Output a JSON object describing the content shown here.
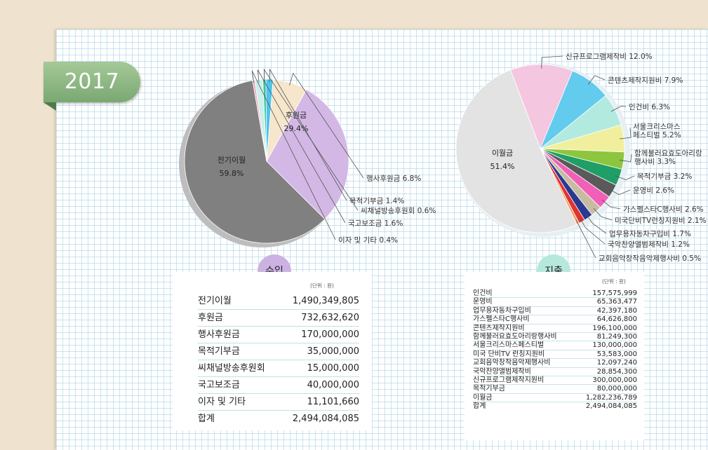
{
  "year": "2017",
  "colors": {
    "paper": "#efe3cf",
    "ribbon": "#8cb683",
    "income_badge": "#ccb2e2",
    "expense_badge": "#b6e8dc"
  },
  "chart_data": [
    {
      "type": "pie",
      "title": "수입",
      "slices": [
        {
          "label": "전기이월",
          "value": 59.8,
          "display": "59.8%",
          "color": "#808080"
        },
        {
          "label": "후원금",
          "value": 29.4,
          "display": "29.4%",
          "color": "#d3b8e6"
        },
        {
          "label": "행사후원금",
          "value": 6.8,
          "display": "6.8%",
          "color": "#f5e6cc"
        },
        {
          "label": "목적기부금",
          "value": 1.4,
          "display": "1.4%",
          "color": "#4ec3ec"
        },
        {
          "label": "씨채널방송후원회",
          "value": 0.6,
          "display": "0.6%",
          "color": "#38c29a"
        },
        {
          "label": "국고보조금",
          "value": 1.6,
          "display": "1.6%",
          "color": "#c9f0ea"
        },
        {
          "label": "이자 및 기타",
          "value": 0.4,
          "display": "0.4%",
          "color": "#f2a3b9"
        }
      ]
    },
    {
      "type": "pie",
      "title": "지출",
      "slices": [
        {
          "label": "신규프로그램제작비",
          "value": 12.0,
          "display": "12.0%",
          "color": "#f5c6e0"
        },
        {
          "label": "콘텐츠제작지원비",
          "value": 7.9,
          "display": "7.9%",
          "color": "#62cbee"
        },
        {
          "label": "인건비",
          "value": 6.3,
          "display": "6.3%",
          "color": "#b3eadf"
        },
        {
          "label": "서울크리스마스 페스티벌",
          "value": 5.2,
          "display": "5.2%",
          "color": "#f1ef9d"
        },
        {
          "label": "함께불러요효도아리랑 행사비",
          "value": 3.3,
          "display": "3.3%",
          "color": "#8cc63e"
        },
        {
          "label": "목적기부금",
          "value": 3.2,
          "display": "3.2%",
          "color": "#1f9e66"
        },
        {
          "label": "운영비",
          "value": 2.6,
          "display": "2.6%",
          "color": "#5a5a5a"
        },
        {
          "label": "가스펠스타C행사비",
          "value": 2.6,
          "display": "2.6%",
          "color": "#f15fb8"
        },
        {
          "label": "미국단비TV런칭지원비",
          "value": 2.1,
          "display": "2.1%",
          "color": "#c7bca2"
        },
        {
          "label": "업무용자동차구입비",
          "value": 1.7,
          "display": "1.7%",
          "color": "#2a3990"
        },
        {
          "label": "국악찬양앨범제작비",
          "value": 1.2,
          "display": "1.2%",
          "color": "#e0342f"
        },
        {
          "label": "교회음악창작음악제행사비",
          "value": 0.5,
          "display": "0.5%",
          "color": "#f49a5c"
        },
        {
          "label": "이월금",
          "value": 51.4,
          "display": "51.4%",
          "color": "#e3e3e3"
        }
      ]
    }
  ],
  "income": {
    "title": "수입",
    "unit": "(단위 : 원)",
    "rows": [
      {
        "label": "전기이월",
        "amount": "1,490,349,805"
      },
      {
        "label": "후원금",
        "amount": "732,632,620"
      },
      {
        "label": "행사후원금",
        "amount": "170,000,000"
      },
      {
        "label": "목적기부금",
        "amount": "35,000,000"
      },
      {
        "label": "씨채널방송후원회",
        "amount": "15,000,000"
      },
      {
        "label": "국고보조금",
        "amount": "40,000,000"
      },
      {
        "label": "이자 및 기타",
        "amount": "11,101,660"
      },
      {
        "label": "합계",
        "amount": "2,494,084,085"
      }
    ]
  },
  "expense": {
    "title": "지출",
    "unit": "(단위 : 원)",
    "rows": [
      {
        "label": "인건비",
        "amount": "157,575,999"
      },
      {
        "label": "운영비",
        "amount": "65,363,477"
      },
      {
        "label": "업무용자동차구입비",
        "amount": "42,397,180"
      },
      {
        "label": "가스펠스타C행사비",
        "amount": "64,626,800"
      },
      {
        "label": "콘텐츠제작지원비",
        "amount": "196,100,000"
      },
      {
        "label": "함께불러요효도아리랑행사비",
        "amount": "81,249,300"
      },
      {
        "label": "서울크리스마스페스티벌",
        "amount": "130,000,000"
      },
      {
        "label": "미국 단비TV 런칭지원비",
        "amount": "53,583,000"
      },
      {
        "label": "교회음악창작음악제행사비",
        "amount": "12,097,240"
      },
      {
        "label": "국악찬양앨범제작비",
        "amount": "28,854,300"
      },
      {
        "label": "신규프로그램제작지원비",
        "amount": "300,000,000"
      },
      {
        "label": "목적기부금",
        "amount": "80,000,000"
      },
      {
        "label": "이월금",
        "amount": "1,282,236,789"
      },
      {
        "label": "합계",
        "amount": "2,494,084,085"
      }
    ]
  }
}
